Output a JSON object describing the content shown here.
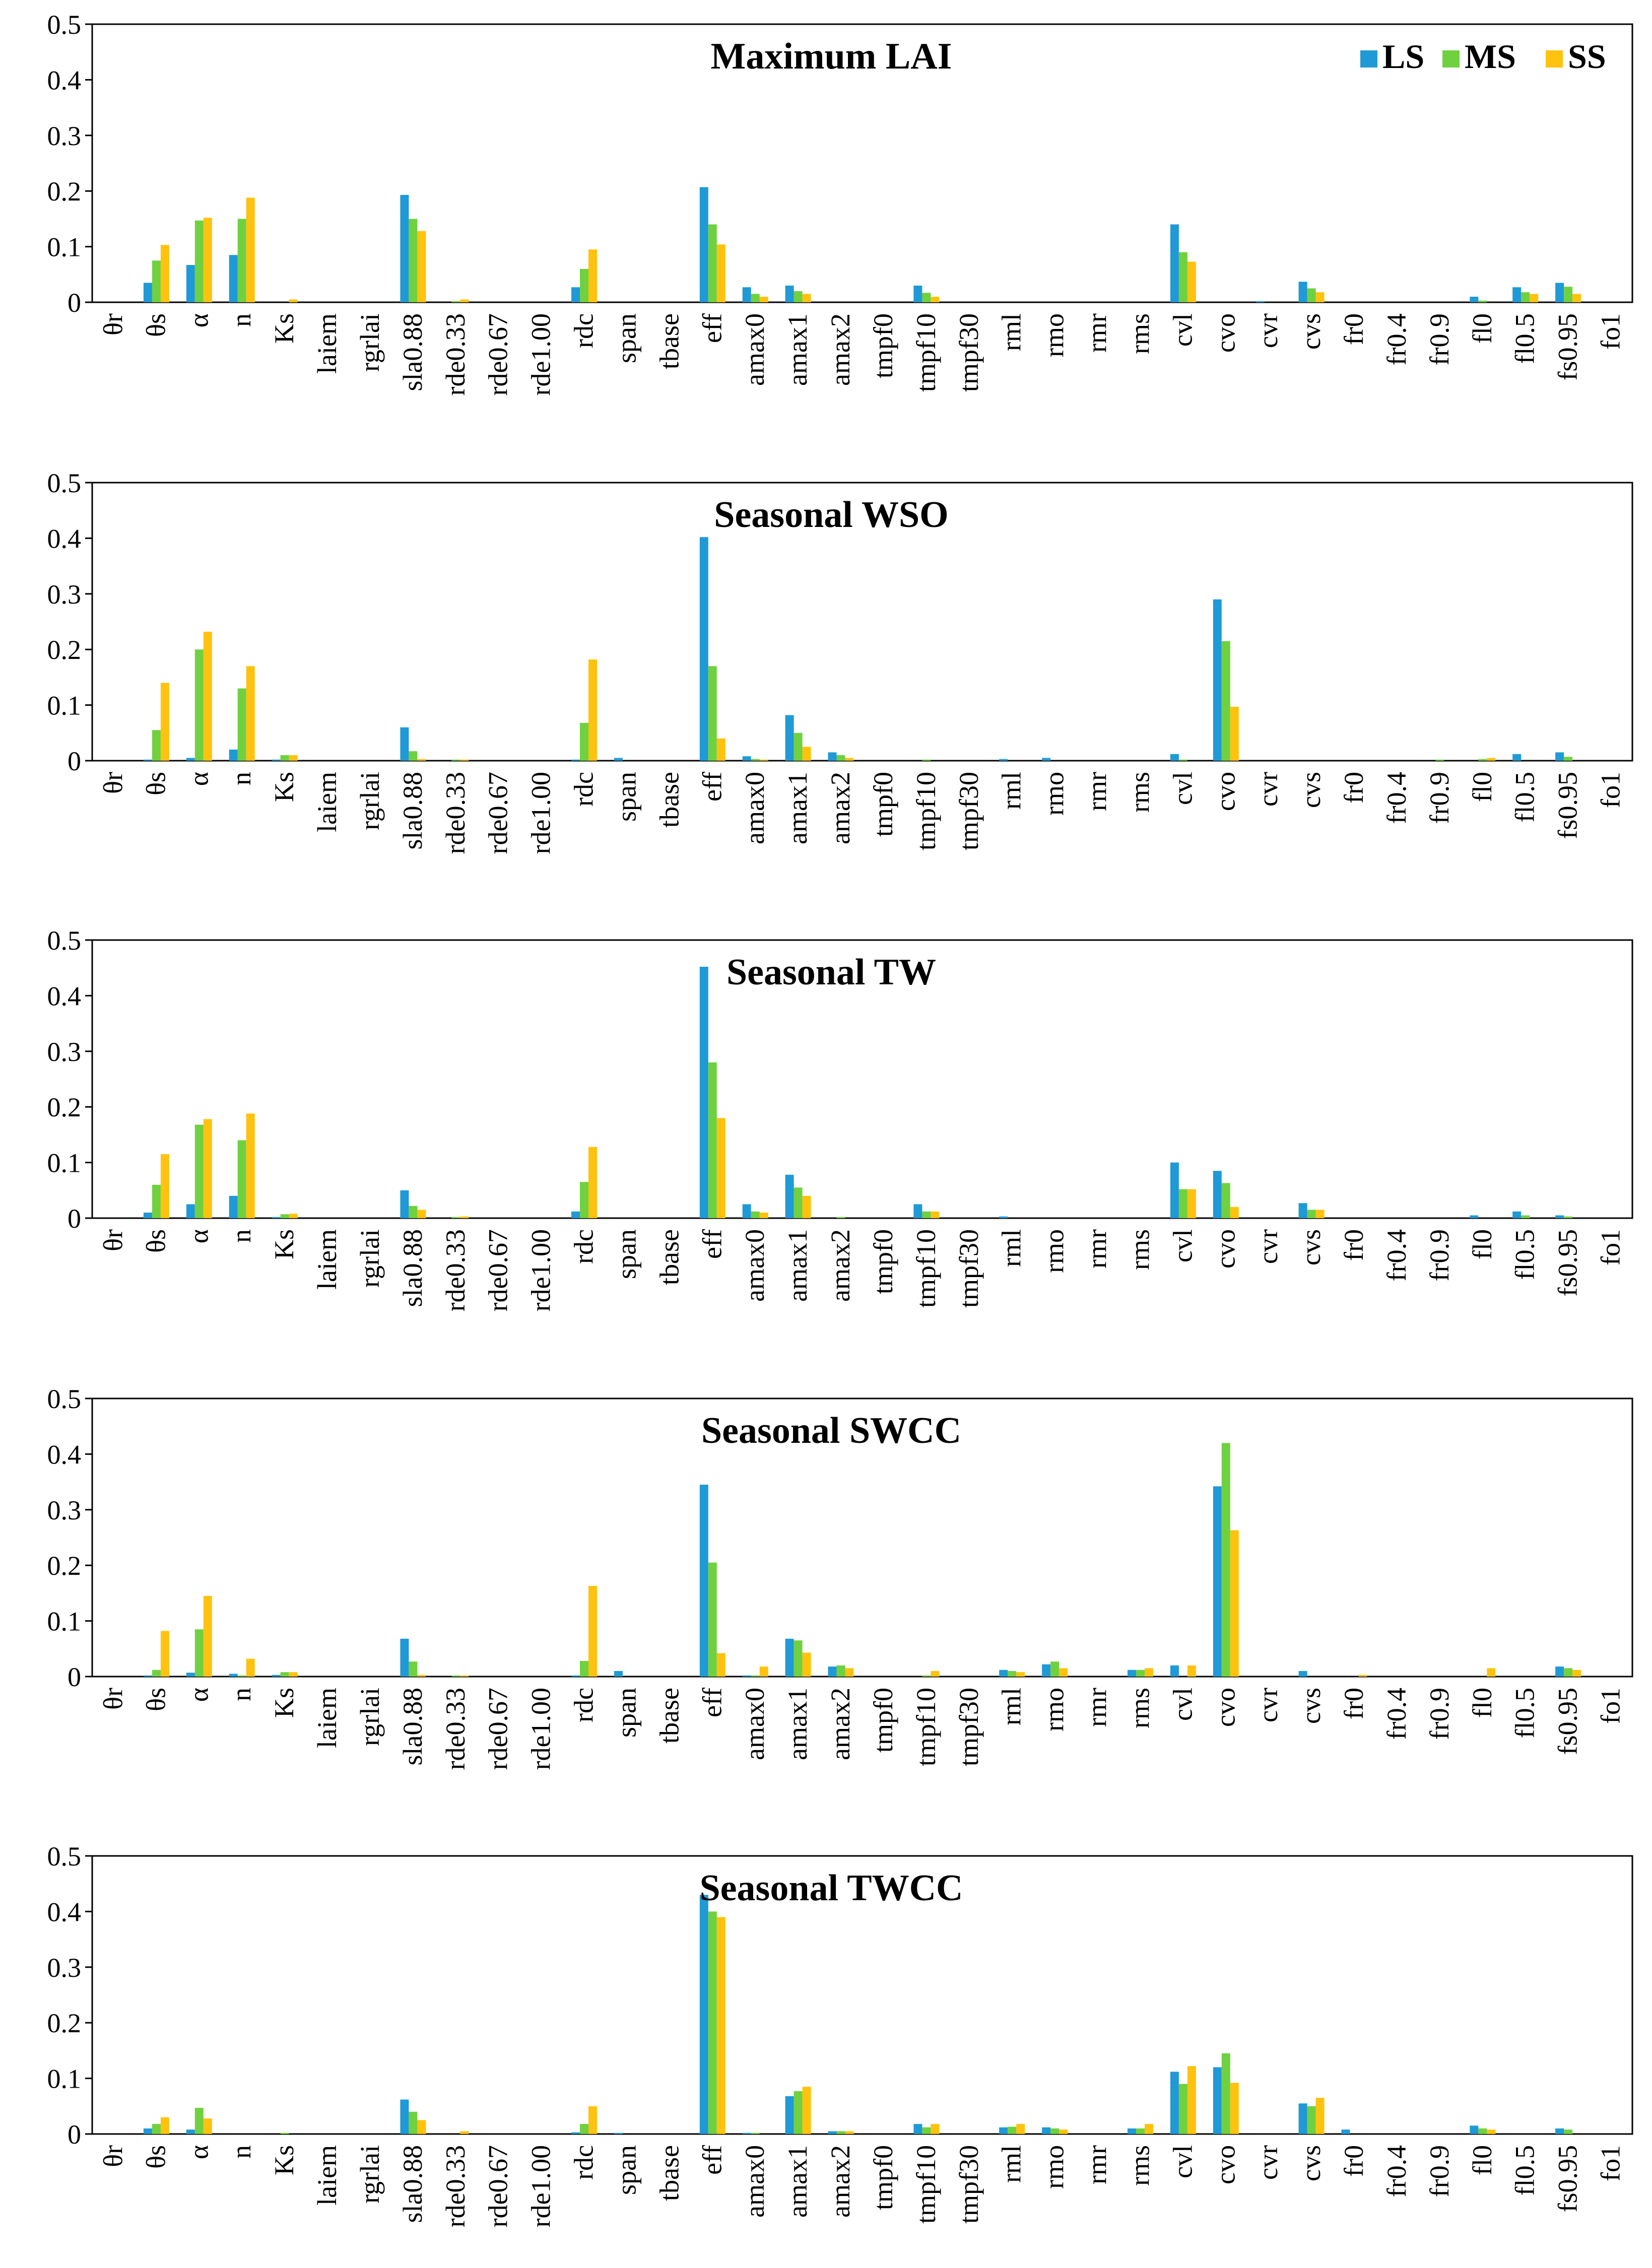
{
  "series_colors": {
    "LS": "#1f9ad6",
    "MS": "#6fd13f",
    "SS": "#ffc20e"
  },
  "chart_data": [
    {
      "type": "bar",
      "title": "Maximum LAI",
      "ylim": [
        0,
        0.5
      ],
      "yticks": [
        "0",
        "0.1",
        "0.2",
        "0.3",
        "0.4",
        "0.5"
      ],
      "legend": [
        "LS",
        "MS",
        "SS"
      ],
      "categories": [
        "θr",
        "θs",
        "α",
        "n",
        "Ks",
        "laiem",
        "rgrlai",
        "sla0.88",
        "rde0.33",
        "rde0.67",
        "rde1.00",
        "rdc",
        "span",
        "tbase",
        "eff",
        "amax0",
        "amax1",
        "amax2",
        "tmpf0",
        "tmpf10",
        "tmpf30",
        "rml",
        "rmo",
        "rmr",
        "rms",
        "cvl",
        "cvo",
        "cvr",
        "cvs",
        "fr0",
        "fr0.4",
        "fr0.9",
        "fl0",
        "fl0.5",
        "fs0.95",
        "fo1"
      ],
      "series": [
        {
          "name": "LS",
          "values": [
            0,
            0.035,
            0.067,
            0.085,
            0,
            0,
            0,
            0.193,
            0,
            0,
            0,
            0.027,
            0,
            0,
            0.207,
            0.027,
            0.03,
            0,
            0,
            0.03,
            0,
            0,
            0,
            0,
            0,
            0.14,
            0,
            0.002,
            0.037,
            0,
            0,
            0,
            0.01,
            0.027,
            0.035,
            0
          ]
        },
        {
          "name": "MS",
          "values": [
            0,
            0.075,
            0.147,
            0.15,
            0,
            0,
            0,
            0.15,
            0.002,
            0,
            0,
            0.06,
            0,
            0,
            0.14,
            0.015,
            0.02,
            0,
            0,
            0.017,
            0,
            0,
            0,
            0,
            0,
            0.09,
            0,
            0,
            0.025,
            0,
            0,
            0,
            0.003,
            0.018,
            0.028,
            0
          ]
        },
        {
          "name": "SS",
          "values": [
            0,
            0.103,
            0.152,
            0.188,
            0.005,
            0,
            0,
            0.128,
            0.005,
            0,
            0,
            0.095,
            0,
            0,
            0.104,
            0.01,
            0.015,
            0,
            0,
            0.01,
            0,
            0,
            0,
            0,
            0,
            0.073,
            0,
            0,
            0.018,
            0,
            0,
            0,
            0,
            0.015,
            0.015,
            0
          ]
        }
      ]
    },
    {
      "type": "bar",
      "title": "Seasonal WSO",
      "ylim": [
        0,
        0.5
      ],
      "yticks": [
        "0",
        "0.1",
        "0.2",
        "0.3",
        "0.4",
        "0.5"
      ],
      "categories": [
        "θr",
        "θs",
        "α",
        "n",
        "Ks",
        "laiem",
        "rgrlai",
        "sla0.88",
        "rde0.33",
        "rde0.67",
        "rde1.00",
        "rdc",
        "span",
        "tbase",
        "eff",
        "amax0",
        "amax1",
        "amax2",
        "tmpf0",
        "tmpf10",
        "tmpf30",
        "rml",
        "rmo",
        "rmr",
        "rms",
        "cvl",
        "cvo",
        "cvr",
        "cvs",
        "fr0",
        "fr0.4",
        "fr0.9",
        "fl0",
        "fl0.5",
        "fs0.95",
        "fo1"
      ],
      "series": [
        {
          "name": "LS",
          "values": [
            0,
            0.002,
            0.005,
            0.02,
            0.002,
            0,
            0,
            0.06,
            0,
            0,
            0,
            0.002,
            0.005,
            0,
            0.402,
            0.008,
            0.082,
            0.015,
            0,
            0,
            0,
            0.003,
            0.005,
            0,
            0,
            0.012,
            0.29,
            0,
            0,
            0,
            0,
            0,
            0,
            0.012,
            0.015,
            0
          ]
        },
        {
          "name": "MS",
          "values": [
            0,
            0.055,
            0.2,
            0.13,
            0.01,
            0,
            0,
            0.017,
            0.002,
            0,
            0,
            0.068,
            0,
            0,
            0.17,
            0.003,
            0.05,
            0.01,
            0,
            0.002,
            0,
            0,
            0,
            0,
            0,
            0.002,
            0.215,
            0,
            0,
            0,
            0,
            0.002,
            0.003,
            0,
            0.007,
            0
          ]
        },
        {
          "name": "SS",
          "values": [
            0,
            0.14,
            0.232,
            0.17,
            0.01,
            0,
            0,
            0.003,
            0.002,
            0,
            0,
            0.182,
            0,
            0,
            0.04,
            0.002,
            0.025,
            0.005,
            0,
            0,
            0,
            0,
            0,
            0,
            0,
            0,
            0.097,
            0,
            0,
            0,
            0,
            0,
            0.005,
            0,
            0,
            0
          ]
        }
      ]
    },
    {
      "type": "bar",
      "title": "Seasonal TW",
      "ylim": [
        0,
        0.5
      ],
      "yticks": [
        "0",
        "0.1",
        "0.2",
        "0.3",
        "0.4",
        "0.5"
      ],
      "categories": [
        "θr",
        "θs",
        "α",
        "n",
        "Ks",
        "laiem",
        "rgrlai",
        "sla0.88",
        "rde0.33",
        "rde0.67",
        "rde1.00",
        "rdc",
        "span",
        "tbase",
        "eff",
        "amax0",
        "amax1",
        "amax2",
        "tmpf0",
        "tmpf10",
        "tmpf30",
        "rml",
        "rmo",
        "rmr",
        "rms",
        "cvl",
        "cvo",
        "cvr",
        "cvs",
        "fr0",
        "fr0.4",
        "fr0.9",
        "fl0",
        "fl0.5",
        "fs0.95",
        "fo1"
      ],
      "series": [
        {
          "name": "LS",
          "values": [
            0,
            0.01,
            0.025,
            0.04,
            0.002,
            0,
            0,
            0.05,
            0,
            0,
            0,
            0.012,
            0,
            0,
            0.452,
            0.025,
            0.078,
            0,
            0,
            0.025,
            0,
            0.003,
            0,
            0,
            0,
            0.1,
            0.085,
            0,
            0.027,
            0,
            0,
            0,
            0.005,
            0.012,
            0.005,
            0
          ]
        },
        {
          "name": "MS",
          "values": [
            0,
            0.06,
            0.168,
            0.14,
            0.007,
            0,
            0,
            0.022,
            0.002,
            0,
            0,
            0.065,
            0,
            0,
            0.28,
            0.012,
            0.055,
            0.002,
            0,
            0.012,
            0,
            0,
            0,
            0,
            0,
            0.052,
            0.063,
            0,
            0.015,
            0,
            0,
            0,
            0,
            0.005,
            0.003,
            0
          ]
        },
        {
          "name": "SS",
          "values": [
            0,
            0.115,
            0.178,
            0.188,
            0.008,
            0,
            0,
            0.015,
            0.003,
            0,
            0,
            0.128,
            0,
            0,
            0.18,
            0.01,
            0.04,
            0,
            0,
            0.012,
            0,
            0,
            0,
            0,
            0,
            0.052,
            0.02,
            0,
            0.015,
            0,
            0,
            0,
            0,
            0,
            0,
            0
          ]
        }
      ]
    },
    {
      "type": "bar",
      "title": "Seasonal SWCC",
      "ylim": [
        0,
        0.5
      ],
      "yticks": [
        "0",
        "0.1",
        "0.2",
        "0.3",
        "0.4",
        "0.5"
      ],
      "categories": [
        "θr",
        "θs",
        "α",
        "n",
        "Ks",
        "laiem",
        "rgrlai",
        "sla0.88",
        "rde0.33",
        "rde0.67",
        "rde1.00",
        "rdc",
        "span",
        "tbase",
        "eff",
        "amax0",
        "amax1",
        "amax2",
        "tmpf0",
        "tmpf10",
        "tmpf30",
        "rml",
        "rmo",
        "rmr",
        "rms",
        "cvl",
        "cvo",
        "cvr",
        "cvs",
        "fr0",
        "fr0.4",
        "fr0.9",
        "fl0",
        "fl0.5",
        "fs0.95",
        "fo1"
      ],
      "series": [
        {
          "name": "LS",
          "values": [
            0,
            0.002,
            0.007,
            0.005,
            0.003,
            0,
            0,
            0.068,
            0,
            0,
            0,
            0.002,
            0.01,
            0,
            0.345,
            0.002,
            0.068,
            0.018,
            0,
            0,
            0,
            0.012,
            0.022,
            0,
            0.012,
            0.02,
            0.342,
            0,
            0.01,
            0,
            0,
            0,
            0,
            0,
            0.018,
            0
          ]
        },
        {
          "name": "MS",
          "values": [
            0,
            0.012,
            0.085,
            0.002,
            0.008,
            0,
            0,
            0.027,
            0.002,
            0,
            0,
            0.028,
            0,
            0,
            0.205,
            0.002,
            0.065,
            0.02,
            0,
            0.002,
            0,
            0.01,
            0.027,
            0,
            0.012,
            0,
            0.42,
            0,
            0,
            0,
            0,
            0,
            0,
            0,
            0.015,
            0
          ]
        },
        {
          "name": "SS",
          "values": [
            0,
            0.082,
            0.145,
            0.032,
            0.008,
            0,
            0,
            0.003,
            0.002,
            0,
            0,
            0.163,
            0,
            0,
            0.042,
            0.018,
            0.043,
            0.015,
            0,
            0.01,
            0,
            0.008,
            0.015,
            0,
            0.015,
            0.02,
            0.263,
            0,
            0,
            0.003,
            0,
            0,
            0.015,
            0,
            0.012,
            0
          ]
        }
      ]
    },
    {
      "type": "bar",
      "title": "Seasonal TWCC",
      "ylim": [
        0,
        0.5
      ],
      "yticks": [
        "0",
        "0.1",
        "0.2",
        "0.3",
        "0.4",
        "0.5"
      ],
      "categories": [
        "θr",
        "θs",
        "α",
        "n",
        "Ks",
        "laiem",
        "rgrlai",
        "sla0.88",
        "rde0.33",
        "rde0.67",
        "rde1.00",
        "rdc",
        "span",
        "tbase",
        "eff",
        "amax0",
        "amax1",
        "amax2",
        "tmpf0",
        "tmpf10",
        "tmpf30",
        "rml",
        "rmo",
        "rmr",
        "rms",
        "cvl",
        "cvo",
        "cvr",
        "cvs",
        "fr0",
        "fr0.4",
        "fr0.9",
        "fl0",
        "fl0.5",
        "fs0.95",
        "fo1"
      ],
      "series": [
        {
          "name": "LS",
          "values": [
            0,
            0.01,
            0.008,
            0,
            0,
            0,
            0,
            0.062,
            0,
            0,
            0,
            0.003,
            0.002,
            0,
            0.43,
            0.002,
            0.068,
            0.005,
            0,
            0.018,
            0,
            0.012,
            0.012,
            0,
            0.01,
            0.112,
            0.12,
            0,
            0.055,
            0.008,
            0,
            0,
            0.015,
            0,
            0.01,
            0
          ]
        },
        {
          "name": "MS",
          "values": [
            0,
            0.018,
            0.047,
            0,
            0.002,
            0,
            0,
            0.04,
            0,
            0,
            0,
            0.018,
            0,
            0,
            0.4,
            0.002,
            0.077,
            0.005,
            0,
            0.012,
            0,
            0.013,
            0.01,
            0,
            0.01,
            0.09,
            0.145,
            0,
            0.05,
            0,
            0,
            0,
            0.01,
            0,
            0.008,
            0
          ]
        },
        {
          "name": "SS",
          "values": [
            0,
            0.03,
            0.028,
            0,
            0,
            0,
            0,
            0.025,
            0.005,
            0,
            0,
            0.05,
            0,
            0,
            0.39,
            0,
            0.085,
            0.005,
            0,
            0.018,
            0,
            0.018,
            0.008,
            0,
            0.018,
            0.122,
            0.092,
            0,
            0.065,
            0,
            0,
            0,
            0.008,
            0,
            0,
            0
          ]
        }
      ]
    }
  ]
}
